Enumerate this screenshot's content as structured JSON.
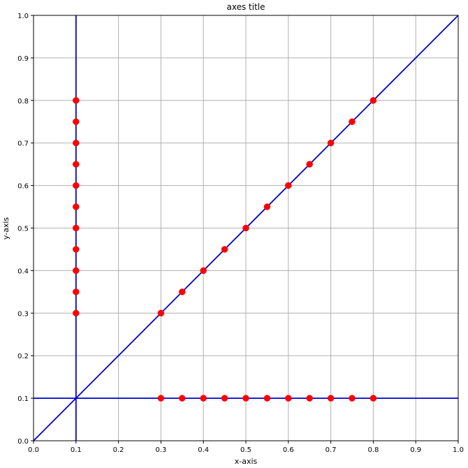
{
  "chart_data": {
    "type": "scatter",
    "title": "axes title",
    "xlabel": "x-axis",
    "ylabel": "y-axis",
    "xlim": [
      0.0,
      1.0
    ],
    "ylim": [
      0.0,
      1.0
    ],
    "grid": true,
    "x_ticks": [
      "0.0",
      "0.1",
      "0.2",
      "0.3",
      "0.4",
      "0.5",
      "0.6",
      "0.7",
      "0.8",
      "0.9",
      "1.0"
    ],
    "y_ticks": [
      "0.0",
      "0.1",
      "0.2",
      "0.3",
      "0.4",
      "0.5",
      "0.6",
      "0.7",
      "0.8",
      "0.9",
      "1.0"
    ],
    "reference_lines": [
      {
        "kind": "vertical",
        "x": 0.1
      },
      {
        "kind": "horizontal",
        "y": 0.1
      },
      {
        "kind": "diagonal",
        "from": [
          0.0,
          0.0
        ],
        "to": [
          1.0,
          1.0
        ]
      }
    ],
    "series": [
      {
        "points": [
          [
            0.1,
            0.3
          ],
          [
            0.1,
            0.35
          ],
          [
            0.1,
            0.4
          ],
          [
            0.1,
            0.45
          ],
          [
            0.1,
            0.5
          ],
          [
            0.1,
            0.55
          ],
          [
            0.1,
            0.6
          ],
          [
            0.1,
            0.65
          ],
          [
            0.1,
            0.7
          ],
          [
            0.1,
            0.75
          ],
          [
            0.1,
            0.8
          ]
        ]
      },
      {
        "points": [
          [
            0.3,
            0.1
          ],
          [
            0.35,
            0.1
          ],
          [
            0.4,
            0.1
          ],
          [
            0.45,
            0.1
          ],
          [
            0.5,
            0.1
          ],
          [
            0.55,
            0.1
          ],
          [
            0.6,
            0.1
          ],
          [
            0.65,
            0.1
          ],
          [
            0.7,
            0.1
          ],
          [
            0.75,
            0.1
          ],
          [
            0.8,
            0.1
          ]
        ]
      },
      {
        "points": [
          [
            0.3,
            0.3
          ],
          [
            0.35,
            0.35
          ],
          [
            0.4,
            0.4
          ],
          [
            0.45,
            0.45
          ],
          [
            0.5,
            0.5
          ],
          [
            0.55,
            0.55
          ],
          [
            0.6,
            0.6
          ],
          [
            0.65,
            0.65
          ],
          [
            0.7,
            0.7
          ],
          [
            0.75,
            0.75
          ],
          [
            0.8,
            0.8
          ]
        ]
      }
    ],
    "colors": {
      "line": "#0000cc",
      "marker": "#ff0000",
      "grid": "#b0b0b0",
      "axes": "#000000"
    }
  }
}
